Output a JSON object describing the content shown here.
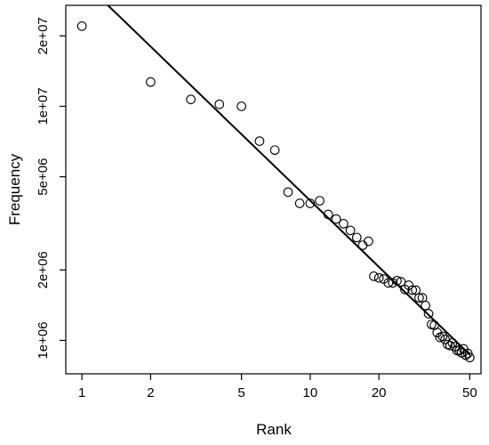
{
  "chart_data": {
    "type": "scatter",
    "title": "",
    "xlabel": "Rank",
    "ylabel": "Frequency",
    "xscale": "log",
    "yscale": "log",
    "xlim": [
      0.85,
      56
    ],
    "ylim": [
      720000,
      27000000
    ],
    "grid": false,
    "x_ticks": [
      {
        "value": 1,
        "label": "1"
      },
      {
        "value": 2,
        "label": "2"
      },
      {
        "value": 5,
        "label": "5"
      },
      {
        "value": 10,
        "label": "10"
      },
      {
        "value": 20,
        "label": "20"
      },
      {
        "value": 50,
        "label": "50"
      }
    ],
    "y_ticks": [
      {
        "value": 1000000,
        "label": "1e+06"
      },
      {
        "value": 2000000,
        "label": "2e+06"
      },
      {
        "value": 5000000,
        "label": "5e+06"
      },
      {
        "value": 10000000,
        "label": "1e+07"
      },
      {
        "value": 20000000,
        "label": "2e+07"
      }
    ],
    "series": [
      {
        "type": "scatter",
        "marker": "open-circle",
        "x": [
          1,
          2,
          3,
          4,
          5,
          6,
          7,
          8,
          9,
          10,
          11,
          12,
          13,
          14,
          15,
          16,
          17,
          18,
          19,
          20,
          21,
          22,
          23,
          24,
          25,
          26,
          27,
          28,
          29,
          30,
          31,
          32,
          33,
          34,
          35,
          36,
          37,
          38,
          39,
          40,
          41,
          42,
          43,
          44,
          45,
          46,
          47,
          48,
          49,
          50
        ],
        "y": [
          22000000,
          12700000,
          10700000,
          10200000,
          10000000,
          7100000,
          6500000,
          4300000,
          3850000,
          3850000,
          3950000,
          3450000,
          3300000,
          3150000,
          2950000,
          2750000,
          2550000,
          2650000,
          1880000,
          1850000,
          1830000,
          1760000,
          1760000,
          1800000,
          1780000,
          1650000,
          1720000,
          1640000,
          1640000,
          1520000,
          1520000,
          1410000,
          1300000,
          1170000,
          1160000,
          1080000,
          1030000,
          1040000,
          1010000,
          960000,
          950000,
          975000,
          940000,
          905000,
          905000,
          885000,
          920000,
          865000,
          880000,
          845000
        ]
      },
      {
        "type": "line",
        "x": [
          1.3,
          50
        ],
        "y": [
          27000000,
          870000
        ]
      }
    ]
  }
}
